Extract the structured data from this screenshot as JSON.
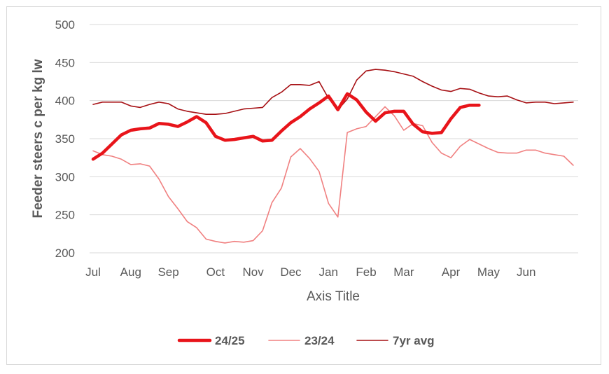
{
  "chart_data": {
    "type": "line",
    "title": "",
    "xlabel": "Axis Title",
    "ylabel": "Feeder steers c per kg lw",
    "ylim": [
      200,
      500
    ],
    "yticks": [
      200,
      250,
      300,
      350,
      400,
      450,
      500
    ],
    "xlim": [
      0,
      51
    ],
    "month_ticks": [
      {
        "label": "Jul",
        "x": 0
      },
      {
        "label": "Aug",
        "x": 4
      },
      {
        "label": "Sep",
        "x": 8
      },
      {
        "label": "Oct",
        "x": 13
      },
      {
        "label": "Nov",
        "x": 17
      },
      {
        "label": "Dec",
        "x": 21
      },
      {
        "label": "Jan",
        "x": 25
      },
      {
        "label": "Feb",
        "x": 29
      },
      {
        "label": "Mar",
        "x": 33
      },
      {
        "label": "Apr",
        "x": 38
      },
      {
        "label": "May",
        "x": 42
      },
      {
        "label": "Jun",
        "x": 46
      }
    ],
    "grid": true,
    "legend": "bottom",
    "series": [
      {
        "name": "24/25",
        "color": "#e8141a",
        "x": [
          0,
          1,
          2,
          3,
          4,
          5,
          6,
          7,
          8,
          9,
          10,
          11,
          12,
          13,
          14,
          15,
          16,
          17,
          18,
          19,
          20,
          21,
          22,
          23,
          24,
          25,
          26,
          27,
          28,
          29,
          30,
          31,
          32,
          33,
          34,
          35,
          36,
          37,
          38,
          39,
          40,
          41
        ],
        "values": [
          323,
          331,
          343,
          355,
          361,
          363,
          364,
          370,
          369,
          366,
          372,
          379,
          371,
          353,
          348,
          349,
          351,
          353,
          347,
          348,
          360,
          371,
          379,
          389,
          397,
          406,
          388,
          409,
          401,
          385,
          373,
          384,
          386,
          386,
          369,
          359,
          357,
          358,
          376,
          391,
          394,
          394
        ]
      },
      {
        "name": "23/24",
        "color": "#f08080",
        "x": [
          0,
          1,
          2,
          3,
          4,
          5,
          6,
          7,
          8,
          9,
          10,
          11,
          12,
          13,
          14,
          15,
          16,
          17,
          18,
          19,
          20,
          21,
          22,
          23,
          24,
          25,
          26,
          27,
          28,
          29,
          30,
          31,
          32,
          33,
          34,
          35,
          36,
          37,
          38,
          39,
          40,
          41,
          42,
          43,
          44,
          45,
          46,
          47,
          48,
          49,
          50,
          51
        ],
        "values": [
          334,
          329,
          327,
          323,
          316,
          317,
          314,
          297,
          274,
          258,
          241,
          233,
          218,
          215,
          213,
          215,
          214,
          216,
          229,
          266,
          285,
          326,
          337,
          324,
          307,
          265,
          247,
          358,
          363,
          366,
          379,
          392,
          380,
          361,
          370,
          367,
          345,
          331,
          325,
          340,
          349,
          343,
          337,
          332,
          331,
          331,
          335,
          335,
          331,
          329,
          327,
          315
        ]
      },
      {
        "name": "7yr avg",
        "color": "#a61014",
        "x": [
          0,
          1,
          2,
          3,
          4,
          5,
          6,
          7,
          8,
          9,
          10,
          11,
          12,
          13,
          14,
          15,
          16,
          17,
          18,
          19,
          20,
          21,
          22,
          23,
          24,
          25,
          26,
          27,
          28,
          29,
          30,
          31,
          32,
          33,
          34,
          35,
          36,
          37,
          38,
          39,
          40,
          41,
          42,
          43,
          44,
          45,
          46,
          47,
          48,
          49,
          50,
          51
        ],
        "values": [
          395,
          398,
          398,
          398,
          393,
          391,
          395,
          398,
          396,
          389,
          386,
          384,
          382,
          382,
          383,
          386,
          389,
          390,
          391,
          404,
          411,
          421,
          421,
          420,
          425,
          403,
          388,
          402,
          427,
          439,
          441,
          440,
          438,
          435,
          432,
          425,
          419,
          414,
          412,
          416,
          415,
          410,
          406,
          405,
          406,
          401,
          397,
          398,
          398,
          396,
          397,
          398
        ]
      }
    ]
  }
}
